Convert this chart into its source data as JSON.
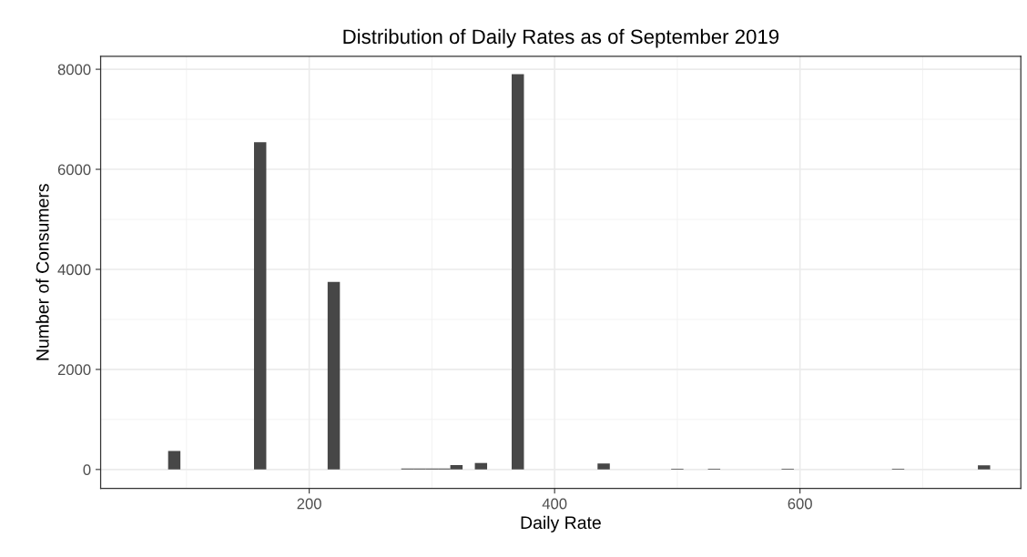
{
  "chart_data": {
    "type": "histogram",
    "title": "Distribution of Daily Rates as of September 2019",
    "xlabel": "Daily Rate",
    "ylabel": "Number of Consumers",
    "bins": [
      85,
      95,
      105,
      115,
      125,
      135,
      145,
      155,
      165,
      175,
      185,
      195,
      205,
      215,
      225,
      235,
      245,
      255,
      265,
      275,
      285,
      295,
      305,
      315,
      325,
      335,
      345,
      355,
      365,
      375,
      385,
      395,
      405,
      415,
      425,
      435,
      445,
      455,
      465,
      475,
      485,
      495,
      505,
      515,
      525,
      535,
      545,
      555,
      565,
      575,
      585,
      595,
      605,
      615,
      625,
      635,
      645,
      655,
      665,
      675,
      685,
      695,
      705,
      715,
      725,
      735,
      745,
      755
    ],
    "values": [
      370,
      0,
      0,
      0,
      0,
      0,
      0,
      6540,
      0,
      0,
      0,
      0,
      0,
      3750,
      0,
      0,
      0,
      0,
      0,
      20,
      20,
      20,
      20,
      90,
      0,
      130,
      0,
      0,
      7900,
      0,
      0,
      0,
      0,
      0,
      0,
      120,
      0,
      0,
      0,
      0,
      0,
      15,
      0,
      0,
      15,
      0,
      0,
      0,
      0,
      0,
      15,
      0,
      0,
      0,
      0,
      0,
      0,
      0,
      0,
      15,
      0,
      0,
      0,
      0,
      0,
      0,
      85
    ],
    "color": "#474747",
    "xlim": [
      30,
      780
    ],
    "ylim": [
      -380,
      8260
    ],
    "xticks": [
      200,
      400,
      600
    ],
    "yticks": [
      0,
      2000,
      4000,
      6000,
      8000
    ],
    "grid": true
  }
}
